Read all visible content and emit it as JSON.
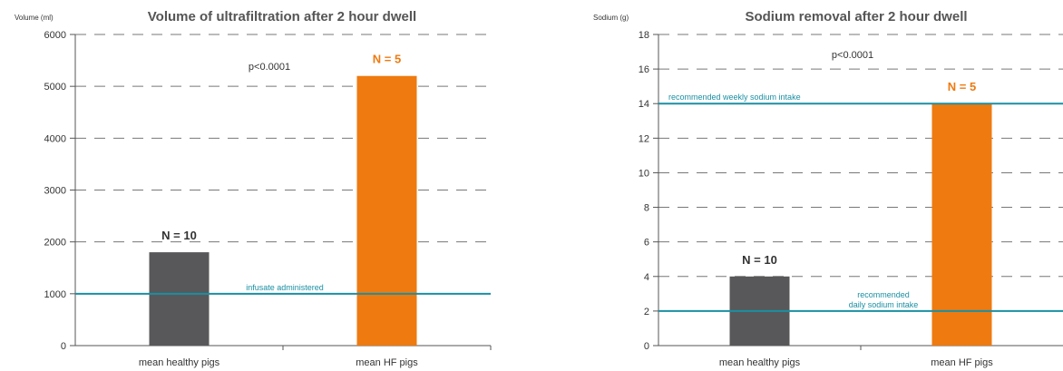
{
  "chart_data": [
    {
      "type": "bar",
      "title": "Volume of ultrafiltration after 2 hour dwell",
      "ylabel": "Volume (ml)",
      "xlabel": "",
      "categories": [
        "mean healthy pigs",
        "mean HF pigs"
      ],
      "values": [
        1800,
        5200
      ],
      "bar_colors": [
        "#58585a",
        "#ee7a10"
      ],
      "bar_labels": [
        "N = 10",
        "N = 5"
      ],
      "bar_label_colors": [
        "#333333",
        "#ee7a10"
      ],
      "ylim": [
        0,
        6000
      ],
      "yticks": [
        0,
        1000,
        2000,
        3000,
        4000,
        5000,
        6000
      ],
      "grid": "dashed-horizontal",
      "annotation": "p<0.0001",
      "reference_lines": [
        {
          "value": 1000,
          "label": "infusate administered",
          "color": "#1a8fa3"
        }
      ]
    },
    {
      "type": "bar",
      "title": "Sodium removal after 2 hour dwell",
      "ylabel": "Sodium (g)",
      "xlabel": "",
      "categories": [
        "mean healthy pigs",
        "mean HF pigs"
      ],
      "values": [
        4,
        14
      ],
      "bar_colors": [
        "#58585a",
        "#ee7a10"
      ],
      "bar_labels": [
        "N = 10",
        "N = 5"
      ],
      "bar_label_colors": [
        "#333333",
        "#ee7a10"
      ],
      "ylim": [
        0,
        18
      ],
      "yticks": [
        0,
        2,
        4,
        6,
        8,
        10,
        12,
        14,
        16,
        18
      ],
      "grid": "dashed-horizontal",
      "annotation": "p<0.0001",
      "reference_lines": [
        {
          "value": 14,
          "label": "recommended weekly sodium intake",
          "color": "#1a8fa3"
        },
        {
          "value": 2,
          "label": "recommended\ndaily sodium intake",
          "color": "#1a8fa3"
        }
      ]
    }
  ]
}
